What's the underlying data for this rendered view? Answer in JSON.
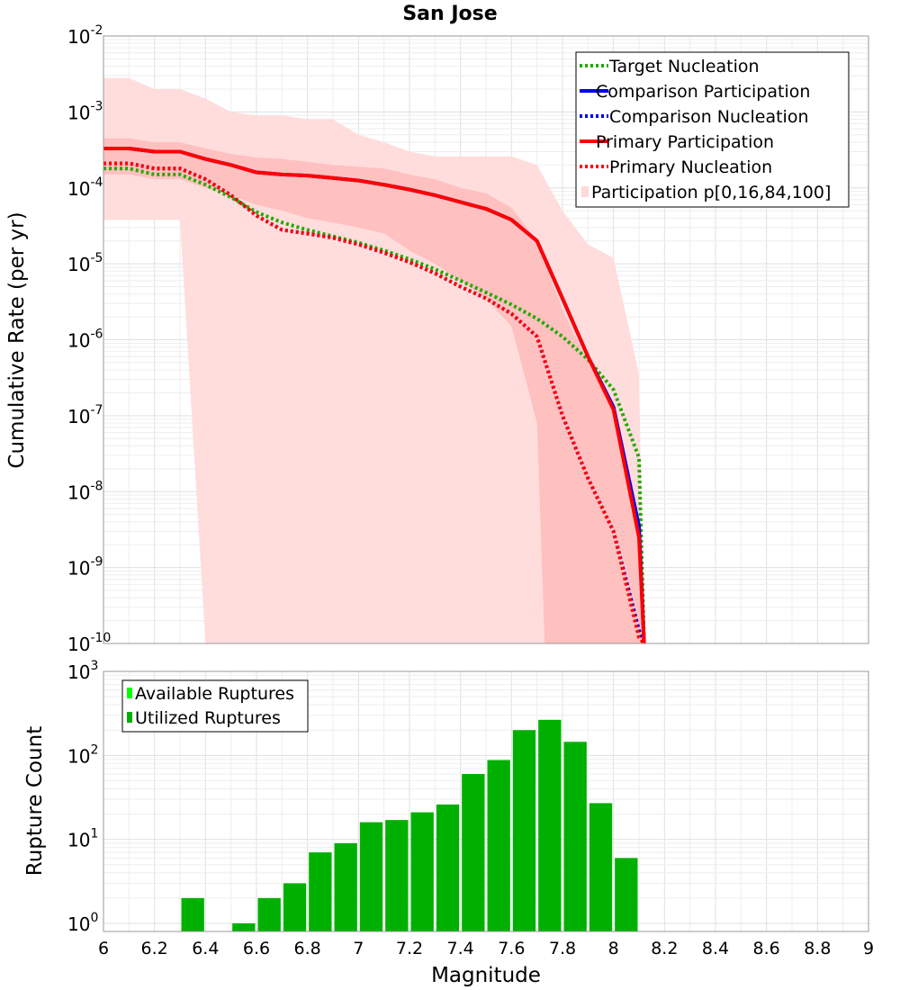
{
  "chart_data": [
    {
      "type": "line",
      "title": "San Jose",
      "xlabel": "",
      "ylabel": "Cumulative Rate (per yr)",
      "yscale": "log",
      "xlim": [
        6,
        9
      ],
      "ylim": [
        1e-10,
        0.01
      ],
      "y_ticks": [
        {
          "base": "10",
          "exp": "-10",
          "value": 1e-10
        },
        {
          "base": "10",
          "exp": "-9",
          "value": 1e-09
        },
        {
          "base": "10",
          "exp": "-8",
          "value": 1e-08
        },
        {
          "base": "10",
          "exp": "-7",
          "value": 1e-07
        },
        {
          "base": "10",
          "exp": "-6",
          "value": 1e-06
        },
        {
          "base": "10",
          "exp": "-5",
          "value": 1e-05
        },
        {
          "base": "10",
          "exp": "-4",
          "value": 0.0001
        },
        {
          "base": "10",
          "exp": "-3",
          "value": 0.001
        },
        {
          "base": "10",
          "exp": "-2",
          "value": 0.01
        }
      ],
      "legend_position": "top-right",
      "legend": [
        {
          "label": "Target Nucleation",
          "color": "#22aa00",
          "style": "dotted"
        },
        {
          "label": "Comparison Participation",
          "color": "#0000ee",
          "style": "solid"
        },
        {
          "label": "Comparison Nucleation",
          "color": "#0000ee",
          "style": "dotted"
        },
        {
          "label": "Primary Participation",
          "color": "#ff0000",
          "style": "solid"
        },
        {
          "label": "Primary Nucleation",
          "color": "#ff0000",
          "style": "dotted"
        },
        {
          "label": "Participation p[0,16,84,100]",
          "color": "#ffd8d8",
          "style": "fill"
        }
      ],
      "bands": [
        {
          "name": "p0-p100",
          "color": "#ffdddd",
          "x": [
            6.0,
            6.1,
            6.2,
            6.3,
            6.4,
            6.5,
            6.6,
            6.7,
            6.8,
            6.9,
            7.0,
            7.1,
            7.2,
            7.3,
            7.4,
            7.5,
            7.6,
            7.7,
            7.8,
            7.9,
            8.0,
            8.1,
            8.12
          ],
          "upper": [
            0.0028,
            0.0028,
            0.002,
            0.002,
            0.0015,
            0.001,
            0.0009,
            0.0009,
            0.0008,
            0.0008,
            0.0005,
            0.0004,
            0.0003,
            0.00026,
            0.00026,
            0.00026,
            0.00026,
            0.0002,
            5e-05,
            1.8e-05,
            1.2e-05,
            3.5e-07,
            1e-10
          ],
          "lower": [
            3.8e-05,
            3.8e-05,
            3.8e-05,
            3.8e-05,
            1e-10,
            1e-10,
            1e-10,
            1e-10,
            1e-10,
            1e-10,
            1e-10,
            1e-10,
            1e-10,
            1e-10,
            1e-10,
            1e-10,
            1e-10,
            1e-10,
            1e-10,
            1e-10,
            1e-10,
            1e-10,
            1e-10
          ],
          "lower_x": [
            6.0,
            6.1,
            6.2,
            6.3,
            6.3,
            6.4
          ]
        },
        {
          "name": "p16-p84",
          "color": "#ffbbbb",
          "x": [
            6.0,
            6.1,
            6.2,
            6.3,
            6.4,
            6.5,
            6.6,
            6.7,
            6.8,
            6.9,
            7.0,
            7.1,
            7.2,
            7.3,
            7.4,
            7.5,
            7.6,
            7.7,
            7.8,
            7.9,
            8.0,
            8.1,
            8.12
          ],
          "upper": [
            0.00045,
            0.00045,
            0.0004,
            0.0004,
            0.00033,
            0.00028,
            0.00025,
            0.00024,
            0.00022,
            0.0002,
            0.00019,
            0.00018,
            0.00015,
            0.00013,
            0.0001,
            8.5e-05,
            5.5e-05,
            2e-05,
            2.5e-06,
            5e-07,
            1.3e-07,
            2.5e-09,
            1e-10
          ],
          "lower": [
            0.00015,
            0.00015,
            0.00013,
            0.00013,
            0.0001,
            8e-05,
            6e-05,
            5e-05,
            4e-05,
            3.5e-05,
            3e-05,
            2.5e-05,
            1.5e-05,
            1e-05,
            6e-06,
            3.5e-06,
            1.5e-06,
            8e-08,
            1e-10,
            1e-10,
            1e-10,
            1e-10,
            1e-10
          ]
        }
      ],
      "x": [
        6.0,
        6.1,
        6.2,
        6.3,
        6.4,
        6.5,
        6.6,
        6.7,
        6.8,
        6.9,
        7.0,
        7.1,
        7.2,
        7.3,
        7.4,
        7.5,
        7.6,
        7.7,
        7.8,
        7.9,
        8.0,
        8.1,
        8.12
      ],
      "series": [
        {
          "name": "Target Nucleation",
          "color": "#22aa00",
          "style": "dotted",
          "values": [
            0.00018,
            0.00018,
            0.00015,
            0.00015,
            0.00011,
            7.5e-05,
            4.8e-05,
            3.5e-05,
            2.8e-05,
            2.3e-05,
            1.9e-05,
            1.5e-05,
            1.15e-05,
            8.5e-06,
            6e-06,
            4.2e-06,
            2.9e-06,
            1.9e-06,
            1.1e-06,
            5.5e-07,
            2.2e-07,
            2.8e-08,
            1e-10
          ]
        },
        {
          "name": "Comparison Participation",
          "color": "#0000ee",
          "style": "solid",
          "values": [
            0.00033,
            0.00033,
            0.0003,
            0.0003,
            0.00024,
            0.0002,
            0.00016,
            0.00015,
            0.000145,
            0.000135,
            0.000125,
            0.00011,
            9.5e-05,
            8e-05,
            6.5e-05,
            5.3e-05,
            3.8e-05,
            2e-05,
            3.5e-06,
            6e-07,
            1.3e-07,
            3.5e-09,
            1e-10
          ]
        },
        {
          "name": "Comparison Nucleation",
          "color": "#0000ee",
          "style": "dotted",
          "values": [
            0.00021,
            0.00021,
            0.00018,
            0.00018,
            0.00013,
            8e-05,
            4.3e-05,
            2.8e-05,
            2.5e-05,
            2.2e-05,
            1.8e-05,
            1.4e-05,
            1.05e-05,
            7.5e-06,
            5e-06,
            3.5e-06,
            2.2e-06,
            1.1e-06,
            1e-07,
            1.5e-08,
            3e-09,
            1.5e-10,
            1e-10
          ]
        },
        {
          "name": "Primary Participation",
          "color": "#ff0000",
          "style": "solid",
          "values": [
            0.00033,
            0.00033,
            0.0003,
            0.0003,
            0.00024,
            0.0002,
            0.00016,
            0.00015,
            0.000145,
            0.000135,
            0.000125,
            0.00011,
            9.5e-05,
            8e-05,
            6.5e-05,
            5.3e-05,
            3.8e-05,
            2e-05,
            3.5e-06,
            6e-07,
            1.2e-07,
            2.5e-09,
            1e-10
          ]
        },
        {
          "name": "Primary Nucleation",
          "color": "#ff0000",
          "style": "dotted",
          "values": [
            0.00021,
            0.00021,
            0.00018,
            0.00018,
            0.00013,
            8e-05,
            4.3e-05,
            2.8e-05,
            2.5e-05,
            2.2e-05,
            1.8e-05,
            1.4e-05,
            1.05e-05,
            7.5e-06,
            5e-06,
            3.5e-06,
            2.2e-06,
            1.1e-06,
            1e-07,
            1.5e-08,
            3e-09,
            1.2e-10,
            1e-10
          ]
        }
      ]
    },
    {
      "type": "bar",
      "title": "",
      "xlabel": "Magnitude",
      "ylabel": "Rupture Count",
      "yscale": "log",
      "xlim": [
        6,
        9
      ],
      "ylim": [
        0.8,
        1000
      ],
      "x_ticks": [
        "6",
        "6.2",
        "6.4",
        "6.6",
        "6.8",
        "7",
        "7.2",
        "7.4",
        "7.6",
        "7.8",
        "8",
        "8.2",
        "8.4",
        "8.6",
        "8.8",
        "9"
      ],
      "y_ticks": [
        {
          "base": "10",
          "exp": "0",
          "value": 1
        },
        {
          "base": "10",
          "exp": "1",
          "value": 10
        },
        {
          "base": "10",
          "exp": "2",
          "value": 100
        },
        {
          "base": "10",
          "exp": "3",
          "value": 1000
        }
      ],
      "legend_position": "top-left",
      "legend": [
        {
          "label": "Available Ruptures",
          "color": "#00ff00"
        },
        {
          "label": "Utilized Ruptures",
          "color": "#00b000"
        }
      ],
      "bin_width": 0.1,
      "bin_centers": [
        6.35,
        6.55,
        6.65,
        6.75,
        6.85,
        6.95,
        7.05,
        7.15,
        7.25,
        7.35,
        7.45,
        7.55,
        7.65,
        7.75,
        7.85,
        7.95,
        8.05
      ],
      "series": [
        {
          "name": "Utilized Ruptures",
          "color": "#00b000",
          "values": [
            2,
            1,
            2,
            3,
            7,
            9,
            16,
            17,
            21,
            26,
            60,
            88,
            200,
            265,
            145,
            27,
            6
          ]
        }
      ]
    }
  ]
}
